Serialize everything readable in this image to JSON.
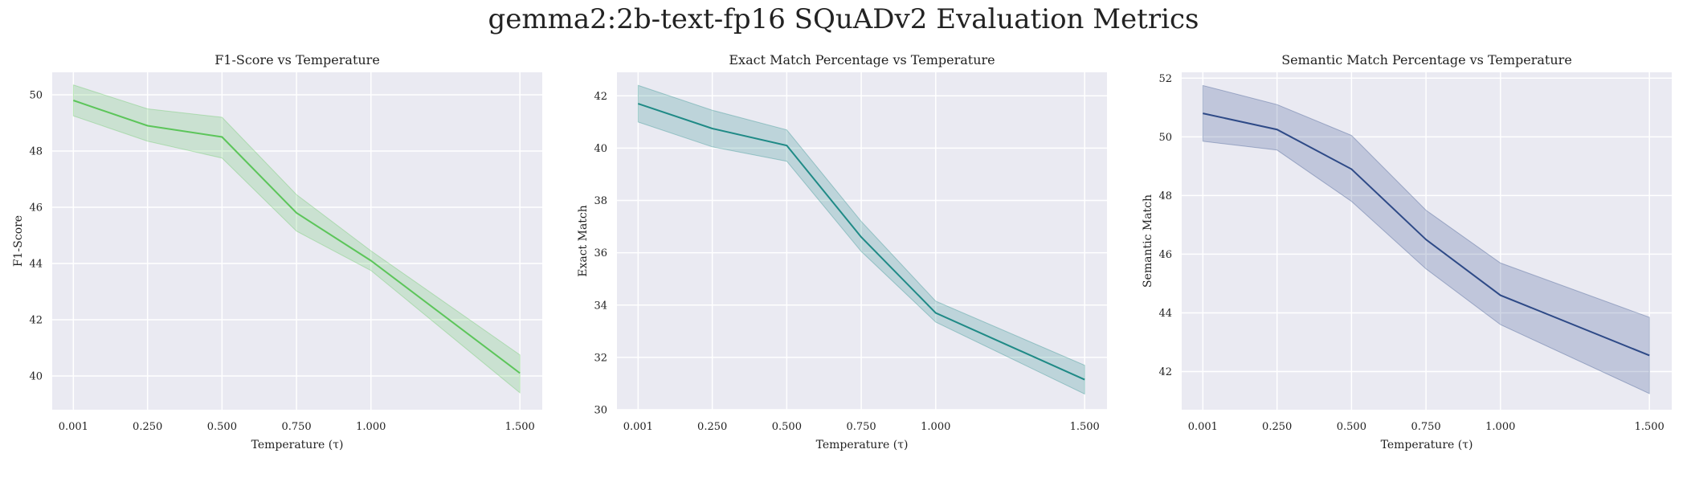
{
  "suptitle": "gemma2:2b-text-fp16 SQuADv2 Evaluation Metrics",
  "chart_data": [
    {
      "type": "line",
      "title": "F1-Score vs Temperature",
      "xlabel": "Temperature (τ)",
      "ylabel": "F1-Score",
      "x": [
        0.001,
        0.25,
        0.5,
        0.75,
        1.0,
        1.5
      ],
      "x_ticks": [
        "0.001",
        "0.250",
        "0.500",
        "0.750",
        "1.000",
        "1.500"
      ],
      "xlim": [
        -0.07,
        1.575
      ],
      "ylim": [
        38.8,
        50.8
      ],
      "y_ticks": [
        40,
        42,
        44,
        46,
        48,
        50
      ],
      "grid": true,
      "series": [
        {
          "values": [
            49.8,
            48.9,
            48.5,
            45.8,
            44.1,
            40.1
          ],
          "lower": [
            49.25,
            48.35,
            47.75,
            45.15,
            43.75,
            39.4
          ],
          "upper": [
            50.35,
            49.5,
            49.2,
            46.45,
            44.45,
            40.75
          ],
          "color": "#5cc55a"
        }
      ]
    },
    {
      "type": "line",
      "title": "Exact Match Percentage vs Temperature",
      "xlabel": "Temperature (τ)",
      "ylabel": "Exact Match",
      "x": [
        0.001,
        0.25,
        0.5,
        0.75,
        1.0,
        1.5
      ],
      "x_ticks": [
        "0.001",
        "0.250",
        "0.500",
        "0.750",
        "1.000",
        "1.500"
      ],
      "xlim": [
        -0.07,
        1.575
      ],
      "ylim": [
        30.0,
        42.9
      ],
      "y_ticks": [
        30,
        32,
        34,
        36,
        38,
        40,
        42
      ],
      "grid": true,
      "series": [
        {
          "values": [
            41.7,
            40.75,
            40.1,
            36.6,
            33.7,
            31.15
          ],
          "lower": [
            41.0,
            40.05,
            39.5,
            36.05,
            33.35,
            30.6
          ],
          "upper": [
            42.4,
            41.45,
            40.7,
            37.2,
            34.15,
            31.7
          ],
          "color": "#1f8a86"
        }
      ]
    },
    {
      "type": "line",
      "title": "Semantic Match Percentage vs Temperature",
      "xlabel": "Temperature (τ)",
      "ylabel": "Semantic Match",
      "x": [
        0.001,
        0.25,
        0.5,
        0.75,
        1.0,
        1.5
      ],
      "x_ticks": [
        "0.001",
        "0.250",
        "0.500",
        "0.750",
        "1.000",
        "1.500"
      ],
      "xlim": [
        -0.07,
        1.575
      ],
      "ylim": [
        40.7,
        52.2
      ],
      "y_ticks": [
        42,
        44,
        46,
        48,
        50,
        52
      ],
      "grid": true,
      "series": [
        {
          "values": [
            50.8,
            50.25,
            48.9,
            46.5,
            44.6,
            42.55
          ],
          "lower": [
            49.85,
            49.55,
            47.8,
            45.5,
            43.6,
            41.25
          ],
          "upper": [
            51.75,
            51.1,
            50.05,
            47.5,
            45.7,
            43.85
          ],
          "color": "#2e4a87"
        }
      ]
    }
  ]
}
